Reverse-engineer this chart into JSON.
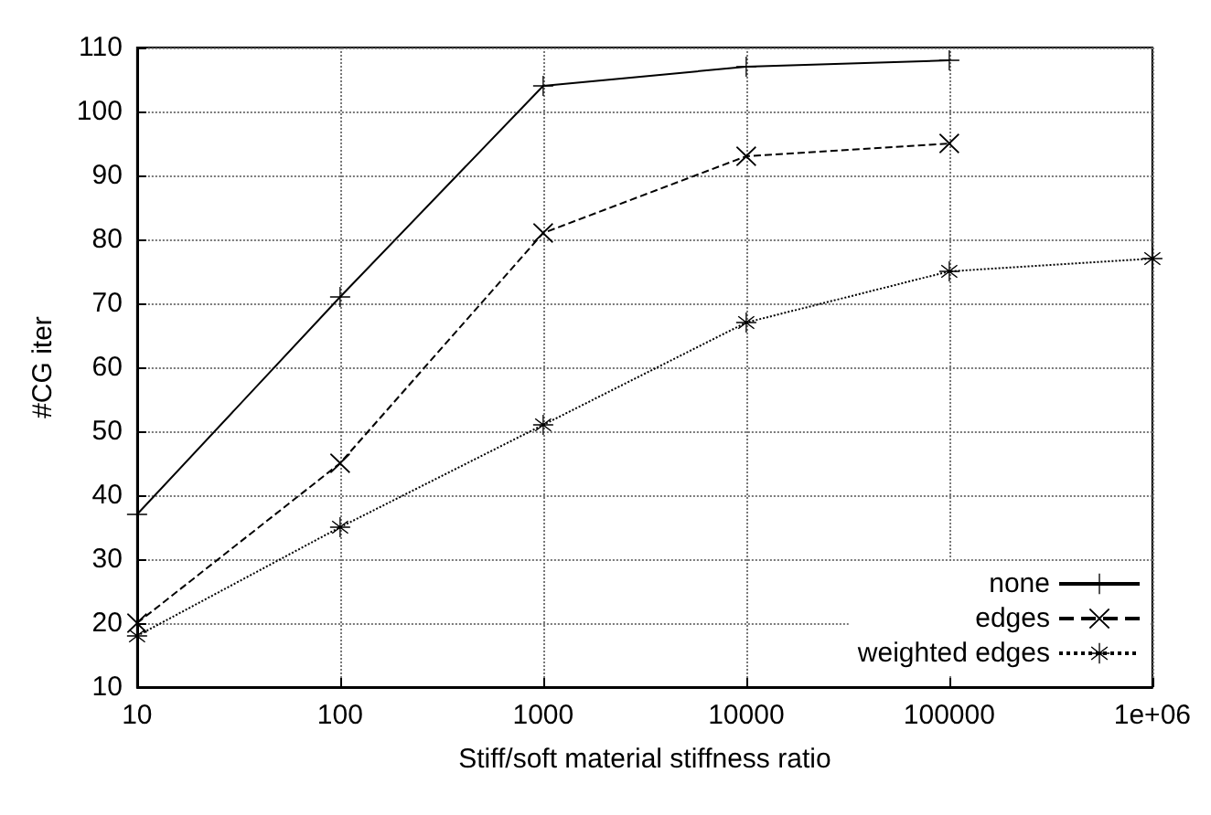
{
  "chart_data": {
    "type": "line",
    "xlabel": "Stiff/soft material stiffness ratio",
    "ylabel": "#CG iter",
    "log": "x",
    "xlim": [
      10,
      1000000
    ],
    "xticks": [
      10,
      100,
      1000,
      10000,
      100000,
      {
        "value": 1000000,
        "label": "1e+06"
      }
    ],
    "ylim": [
      10,
      110
    ],
    "yticks": [
      10,
      20,
      30,
      40,
      50,
      60,
      70,
      80,
      90,
      100,
      110
    ],
    "grid": true,
    "legend": "bottom right",
    "series": [
      {
        "name": "none",
        "color": "#000000",
        "marker": "plus",
        "line_style": "solid",
        "x": [
          10,
          100,
          1000,
          10000,
          100000
        ],
        "values": [
          37,
          71,
          104,
          107,
          108
        ]
      },
      {
        "name": "edges",
        "color": "#000000",
        "marker": "cross",
        "line_style": "dashed",
        "x": [
          10,
          100,
          1000,
          10000,
          100000
        ],
        "values": [
          20,
          45,
          81,
          93,
          95
        ]
      },
      {
        "name": "weighted edges",
        "color": "#000000",
        "marker": "star",
        "line_style": "dotted",
        "x": [
          10,
          100,
          1000,
          10000,
          100000,
          1000000
        ],
        "values": [
          18,
          35,
          51,
          67,
          75,
          77
        ]
      }
    ]
  }
}
